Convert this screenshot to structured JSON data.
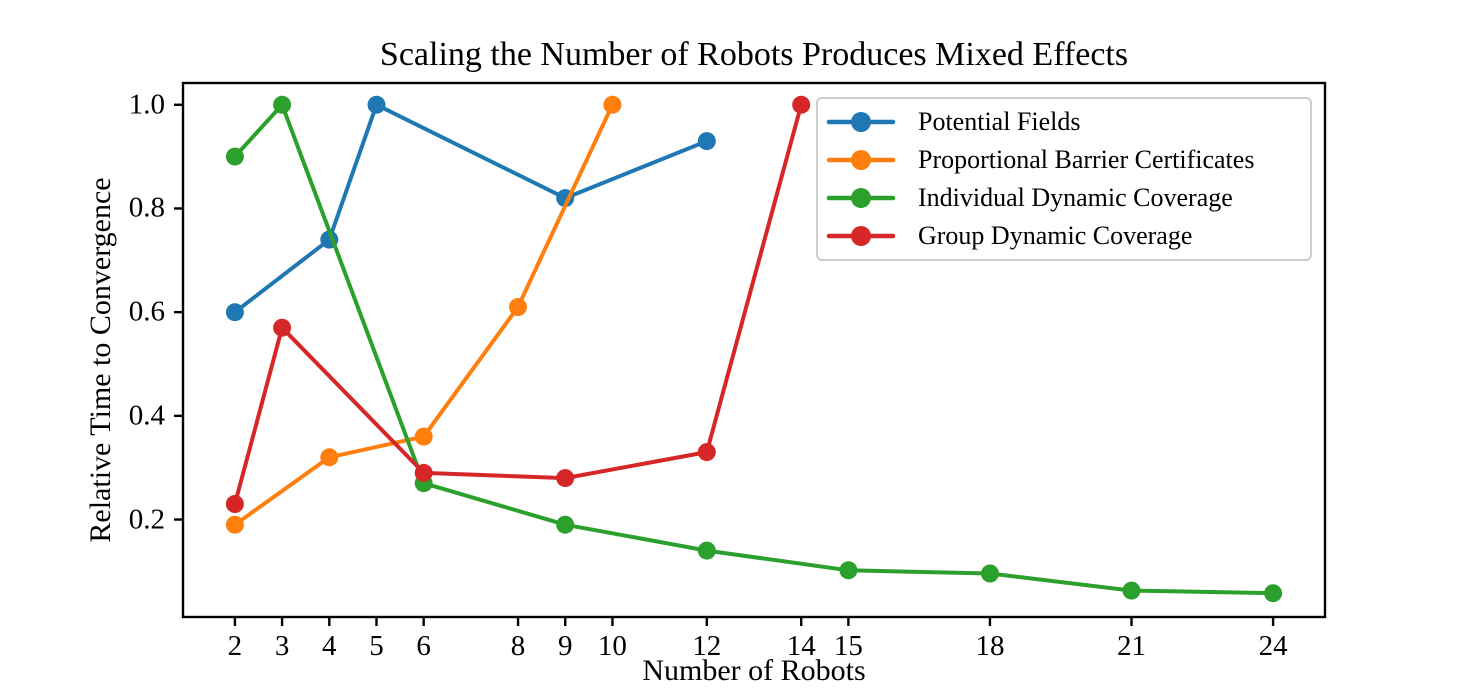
{
  "figure": {
    "title": "Scaling the Number of Robots Produces Mixed Effects",
    "xlabel": "Number of Robots",
    "ylabel": "Relative Time to Convergence"
  },
  "chart_data": {
    "type": "line",
    "title": "Scaling the Number of Robots Produces Mixed Effects",
    "xlabel": "Number of Robots",
    "ylabel": "Relative Time to Convergence",
    "grid": false,
    "legend_position": "upper right",
    "xlim": [
      0.9,
      25.1
    ],
    "ylim": [
      0.012,
      1.042
    ],
    "x_ticks": [
      2,
      3,
      4,
      5,
      6,
      8,
      9,
      10,
      12,
      14,
      15,
      18,
      21,
      24
    ],
    "y_ticks": [
      0.2,
      0.4,
      0.6,
      0.8,
      1.0
    ],
    "series": [
      {
        "name": "Potential Fields",
        "color": "#1f77b4",
        "x": [
          2,
          4,
          5,
          9,
          12
        ],
        "y": [
          0.6,
          0.74,
          1.0,
          0.82,
          0.93
        ]
      },
      {
        "name": "Proportional Barrier Certificates",
        "color": "#ff7f0e",
        "x": [
          2,
          4,
          6,
          8,
          10
        ],
        "y": [
          0.19,
          0.32,
          0.36,
          0.61,
          1.0
        ]
      },
      {
        "name": "Individual Dynamic Coverage",
        "color": "#2ca02c",
        "x": [
          2,
          3,
          6,
          9,
          12,
          15,
          18,
          21,
          24
        ],
        "y": [
          0.9,
          1.0,
          0.27,
          0.19,
          0.14,
          0.102,
          0.096,
          0.063,
          0.058
        ]
      },
      {
        "name": "Group Dynamic Coverage",
        "color": "#d62728",
        "x": [
          2,
          3,
          6,
          9,
          12,
          14
        ],
        "y": [
          0.23,
          0.57,
          0.29,
          0.28,
          0.33,
          1.0
        ]
      }
    ]
  }
}
